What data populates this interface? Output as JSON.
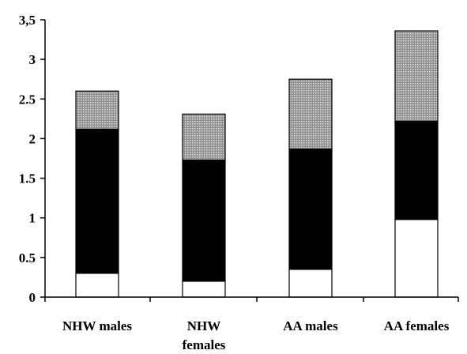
{
  "chart_data": {
    "type": "bar",
    "stacked": true,
    "categories": [
      [
        "NHW males"
      ],
      [
        "NHW",
        "females"
      ],
      [
        "AA males"
      ],
      [
        "AA females"
      ]
    ],
    "series": [
      {
        "values": [
          0.3,
          0.2,
          0.35,
          0.98
        ],
        "color": "#ffffff"
      },
      {
        "values": [
          1.82,
          1.53,
          1.52,
          1.24
        ],
        "color": "#000000"
      },
      {
        "values": [
          0.48,
          0.58,
          0.88,
          1.14
        ],
        "color": "#a9a9a9"
      }
    ],
    "y_ticks": [
      "0",
      "0.5",
      "1",
      "1.5",
      "2",
      "2.5",
      "3",
      "3,5"
    ],
    "ylim": [
      0,
      3.5
    ],
    "title": "",
    "xlabel": "",
    "ylabel": "",
    "grid": false,
    "legend": false
  }
}
